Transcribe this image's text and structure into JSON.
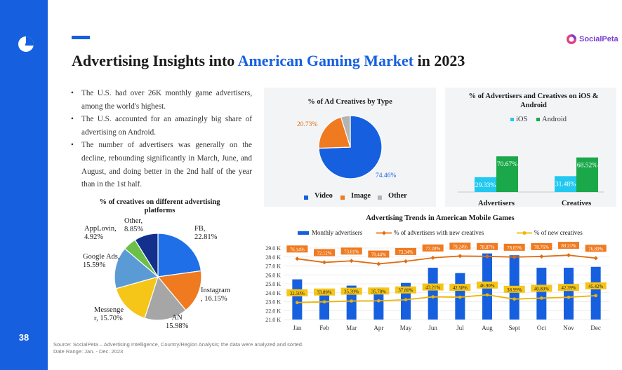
{
  "page": {
    "number": "38",
    "title_prefix": "Advertising Insights into ",
    "title_highlight": "American Gaming Market",
    "title_suffix": " in 2023",
    "brand": "SocialPeta",
    "bullets": [
      "The U.S. had over 26K monthly game advertisers, among the world's highest.",
      "The U.S. accounted for an amazingly big share of advertising on Android.",
      "The number of advertisers was generally on the decline, rebounding significantly in March, June, and August, and doing better in the 2nd half of the year than in the 1st half."
    ],
    "footer_source": "Source: SocialPeta – Advertising Intelligence, Country/Region Analysis; the data were analyzed and sorted.",
    "footer_range": "Date Range: Jan. - Dec. 2023",
    "colors": {
      "accent": "#1660e0",
      "brand": "#7a3fd0",
      "orange": "#f07a20",
      "green": "#1aa84a",
      "cyan": "#22c8f0",
      "gold": "#f5c518"
    }
  },
  "chart_data": [
    {
      "type": "pie",
      "title": "% of creatives on different advertising platforms",
      "labels": [
        "FB",
        "Instagram",
        "AN",
        "Messenger",
        "Google Ads",
        "AppLovin",
        "Other"
      ],
      "values": [
        22.81,
        16.15,
        15.98,
        15.7,
        15.59,
        4.92,
        8.85
      ],
      "label_text": [
        "FB,\n22.81%",
        "Instagram\n, 16.15%",
        "AN\n15.98%",
        "Messenge\nr, 15.70%",
        "Google Ads,\n15.59%",
        "AppLovin,\n4.92%",
        "Other,\n8.85%"
      ],
      "colors": [
        "#1f6fe8",
        "#f07a20",
        "#a6a6a6",
        "#f5c518",
        "#5b9bd5",
        "#6cc04a",
        "#12308c"
      ]
    },
    {
      "type": "pie",
      "title": "% of Ad Creatives by Type",
      "labels": [
        "Video",
        "Image",
        "Other"
      ],
      "values": [
        74.46,
        20.73,
        4.81
      ],
      "value_labels": [
        "74.46%",
        "20.73%",
        ""
      ],
      "colors": [
        "#1660e0",
        "#f07a20",
        "#b3b3b3"
      ],
      "legend": "bottom"
    },
    {
      "type": "bar",
      "title": "% of Advertisers and Creatives on iOS & Android",
      "categories": [
        "Advertisers",
        "Creatives"
      ],
      "series": [
        {
          "name": "iOS",
          "values": [
            29.33,
            31.48
          ],
          "labels": [
            "29.33%",
            "31.48%"
          ],
          "color": "#22c8f0"
        },
        {
          "name": "Android",
          "values": [
            70.67,
            68.52
          ],
          "labels": [
            "70.67%",
            "68.52%"
          ],
          "color": "#1aa84a"
        }
      ],
      "ylim": [
        0,
        100
      ],
      "legend": "top"
    },
    {
      "type": "bar",
      "title": "Advertising Trends in American Mobile Games",
      "categories": [
        "Jan",
        "Feb",
        "Mar",
        "Apr",
        "May",
        "Jun",
        "Jul",
        "Aug",
        "Sept",
        "Oct",
        "Nov",
        "Dec"
      ],
      "y_ticks": [
        "21.0 K",
        "22.0 K",
        "23.0 K",
        "24.0 K",
        "25.0 K",
        "26.0 K",
        "27.0 K",
        "28.0 K",
        "29.0 K"
      ],
      "ylim": [
        21.0,
        29.0
      ],
      "y_unit": "K",
      "series": [
        {
          "name": "Monthly advertisers",
          "type": "bar",
          "color": "#1660e0",
          "values": [
            25.5,
            24.1,
            24.8,
            24.3,
            25.1,
            26.8,
            26.2,
            28.4,
            28.2,
            26.8,
            26.8,
            26.9
          ]
        },
        {
          "name": "% of advertisers with new creatives",
          "type": "line",
          "color": "#e06c10",
          "values": [
            76.14,
            72.12,
            73.81,
            70.44,
            73.34,
            77.28,
            79.24,
            78.87,
            78.05,
            78.76,
            80.21,
            76.89
          ],
          "labels": [
            "76.14%",
            "72.12%",
            "73.81%",
            "70.44%",
            "73.34%",
            "77.28%",
            "79.24%",
            "78.87%",
            "78.05%",
            "78.76%",
            "80.21%",
            "76.89%"
          ]
        },
        {
          "name": "% of new creatives",
          "type": "line",
          "color": "#f0b400",
          "values": [
            32.5,
            33.89,
            35.39,
            35.78,
            37.8,
            43.21,
            42.58,
            46.9,
            38.99,
            40.8,
            42.39,
            45.42
          ],
          "labels": [
            "32.50%",
            "33.89%",
            "35.39%",
            "35.78%",
            "37.80%",
            "43.21%",
            "42.58%",
            "46.90%",
            "38.99%",
            "40.80%",
            "42.39%",
            "45.42%"
          ]
        }
      ],
      "legend": "top"
    }
  ]
}
